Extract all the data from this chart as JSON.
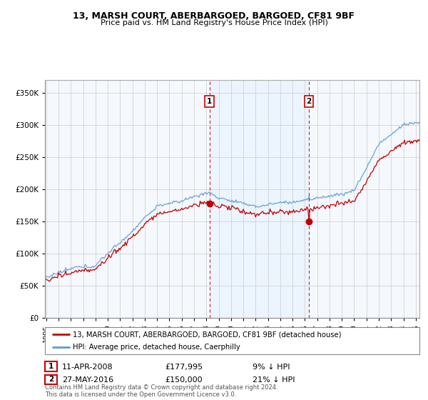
{
  "title": "13, MARSH COURT, ABERBARGOED, BARGOED, CF81 9BF",
  "subtitle": "Price paid vs. HM Land Registry's House Price Index (HPI)",
  "legend_line1": "13, MARSH COURT, ABERBARGOED, BARGOED, CF81 9BF (detached house)",
  "legend_line2": "HPI: Average price, detached house, Caerphilly",
  "transaction1_date": "11-APR-2008",
  "transaction1_price": 177995,
  "transaction1_note": "9% ↓ HPI",
  "transaction2_date": "27-MAY-2016",
  "transaction2_price": 150000,
  "transaction2_note": "21% ↓ HPI",
  "ytick_values": [
    0,
    50000,
    100000,
    150000,
    200000,
    250000,
    300000,
    350000
  ],
  "ylim": [
    0,
    370000
  ],
  "xlim_start": 1994.9,
  "xlim_end": 2025.3,
  "copyright": "Contains HM Land Registry data © Crown copyright and database right 2024.\nThis data is licensed under the Open Government Licence v3.0.",
  "hpi_color": "#5b9bd5",
  "price_color": "#c00000",
  "dot_color": "#c00000",
  "shade_color": "#ddeeff",
  "background_color": "#ffffff",
  "chart_bg_color": "#f5f8fc",
  "grid_color": "#cccccc"
}
